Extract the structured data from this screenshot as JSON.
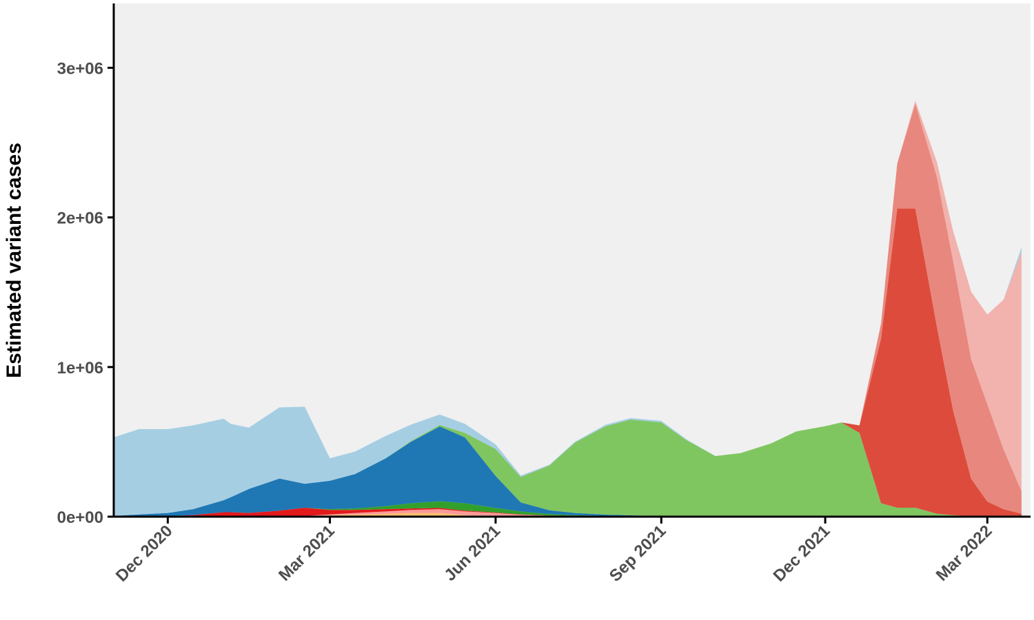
{
  "chart_data": {
    "type": "area",
    "stacked": true,
    "title": "",
    "xlabel": "",
    "ylabel": "Estimated variant cases",
    "x_tick_labels": [
      "Dec 2020",
      "Mar 2021",
      "Jun 2021",
      "Sep 2021",
      "Dec 2021",
      "Mar 2022"
    ],
    "x_tick_dates": [
      "2020-12-01",
      "2021-03-01",
      "2021-06-01",
      "2021-09-01",
      "2021-12-01",
      "2022-03-01"
    ],
    "x_range": [
      "2020-11-01",
      "2022-03-25"
    ],
    "y_tick_values": [
      0,
      1000000,
      2000000,
      3000000
    ],
    "y_tick_labels": [
      "0e+00",
      "1e+06",
      "2e+06",
      "3e+06"
    ],
    "ylim": [
      0,
      3430000
    ],
    "grid": false,
    "legend": "none",
    "background_color": "#f0f0f0",
    "dates": [
      "2020-11-01",
      "2020-11-15",
      "2020-12-01",
      "2020-12-15",
      "2021-01-01",
      "2021-01-05",
      "2021-01-15",
      "2021-02-01",
      "2021-02-15",
      "2021-03-01",
      "2021-03-15",
      "2021-04-01",
      "2021-04-15",
      "2021-05-01",
      "2021-05-15",
      "2021-06-01",
      "2021-06-15",
      "2021-07-01",
      "2021-07-15",
      "2021-08-01",
      "2021-08-15",
      "2021-09-01",
      "2021-09-15",
      "2021-10-01",
      "2021-10-15",
      "2021-11-01",
      "2021-11-15",
      "2021-12-01",
      "2021-12-10",
      "2021-12-20",
      "2022-01-01",
      "2022-01-10",
      "2022-01-20",
      "2022-02-01",
      "2022-02-10",
      "2022-02-20",
      "2022-03-01",
      "2022-03-10",
      "2022-03-20"
    ],
    "series": [
      {
        "color": "#fdbf6f",
        "values": [
          0,
          0,
          0,
          0,
          0,
          0,
          0,
          0,
          5000,
          10000,
          15000,
          20000,
          25000,
          25000,
          10000,
          5000,
          3000,
          2000,
          1000,
          1000,
          1000,
          500,
          0,
          0,
          0,
          0,
          0,
          0,
          0,
          0,
          0,
          0,
          0,
          0,
          0,
          0,
          0,
          0,
          0
        ]
      },
      {
        "color": "#fb9a99",
        "values": [
          0,
          0,
          0,
          0,
          0,
          0,
          0,
          0,
          0,
          5000,
          10000,
          15000,
          20000,
          25000,
          25000,
          20000,
          10000,
          5000,
          3000,
          2000,
          1000,
          1000,
          0,
          0,
          0,
          0,
          0,
          0,
          0,
          0,
          0,
          0,
          0,
          0,
          0,
          0,
          0,
          0,
          0
        ]
      },
      {
        "color": "#e31a1c",
        "values": [
          0,
          0,
          5000,
          10000,
          30000,
          30000,
          25000,
          40000,
          55000,
          30000,
          20000,
          15000,
          10000,
          8000,
          5000,
          3000,
          2000,
          1000,
          1000,
          0,
          0,
          0,
          0,
          0,
          0,
          0,
          0,
          0,
          0,
          0,
          0,
          0,
          0,
          0,
          0,
          0,
          0,
          0,
          0
        ]
      },
      {
        "color": "#33a02c",
        "values": [
          0,
          0,
          0,
          0,
          0,
          0,
          0,
          0,
          0,
          5000,
          10000,
          20000,
          35000,
          45000,
          50000,
          30000,
          20000,
          10000,
          5000,
          3000,
          2000,
          1000,
          500,
          0,
          0,
          0,
          0,
          0,
          0,
          0,
          0,
          0,
          0,
          0,
          0,
          0,
          0,
          0,
          0
        ]
      },
      {
        "color": "#1f78b4",
        "values": [
          5000,
          15000,
          20000,
          40000,
          80000,
          100000,
          160000,
          215000,
          160000,
          190000,
          230000,
          320000,
          410000,
          500000,
          440000,
          215000,
          60000,
          25000,
          15000,
          8000,
          5000,
          3000,
          1000,
          0,
          0,
          0,
          0,
          0,
          0,
          0,
          0,
          0,
          0,
          0,
          0,
          0,
          0,
          0,
          0
        ]
      },
      {
        "color": "#7fc661",
        "values": [
          0,
          0,
          0,
          0,
          0,
          0,
          0,
          0,
          0,
          0,
          0,
          0,
          5000,
          10000,
          30000,
          180000,
          170000,
          300000,
          470000,
          590000,
          640000,
          625000,
          510000,
          405000,
          425000,
          490000,
          570000,
          605000,
          630000,
          560000,
          90000,
          60000,
          60000,
          20000,
          10000,
          3000,
          1000,
          0,
          0
        ]
      },
      {
        "color": "#dd4b3c",
        "values": [
          0,
          0,
          0,
          0,
          0,
          0,
          0,
          0,
          0,
          0,
          0,
          0,
          0,
          0,
          0,
          0,
          0,
          0,
          0,
          0,
          0,
          0,
          0,
          0,
          0,
          0,
          0,
          0,
          0,
          50000,
          1100000,
          2000000,
          2000000,
          1250000,
          700000,
          250000,
          100000,
          50000,
          20000
        ]
      },
      {
        "color": "#e8877d",
        "values": [
          0,
          0,
          0,
          0,
          0,
          0,
          0,
          0,
          0,
          0,
          0,
          0,
          0,
          0,
          0,
          0,
          0,
          0,
          0,
          0,
          0,
          0,
          0,
          0,
          0,
          0,
          0,
          0,
          0,
          0,
          100000,
          300000,
          700000,
          1000000,
          1000000,
          800000,
          650000,
          400000,
          150000
        ]
      },
      {
        "color": "#f2b2ad",
        "values": [
          0,
          0,
          0,
          0,
          0,
          0,
          0,
          0,
          0,
          0,
          0,
          0,
          0,
          0,
          0,
          0,
          0,
          0,
          0,
          0,
          0,
          0,
          0,
          0,
          0,
          0,
          0,
          0,
          0,
          0,
          0,
          0,
          20000,
          100000,
          200000,
          450000,
          600000,
          1000000,
          1600000
        ]
      },
      {
        "color": "#a6cee3",
        "values": [
          525000,
          570000,
          560000,
          560000,
          545000,
          490000,
          410000,
          475000,
          515000,
          150000,
          150000,
          150000,
          110000,
          70000,
          60000,
          30000,
          10000,
          5000,
          5000,
          10000,
          10000,
          10000,
          5000,
          0,
          0,
          0,
          0,
          0,
          0,
          0,
          0,
          0,
          0,
          0,
          0,
          0,
          0,
          0,
          30000
        ]
      }
    ]
  }
}
